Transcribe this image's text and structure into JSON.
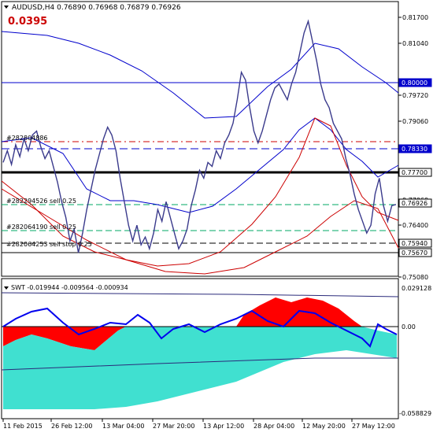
{
  "header": {
    "symbol_line": "AUDUSD,H4  0.76890 0.76968 0.76879 0.76926",
    "value": "0.0395",
    "value_color": "#cc0000"
  },
  "price_axis": {
    "ticks": [
      "0.81700",
      "0.81040",
      "0.79720",
      "0.79060",
      "0.77060",
      "0.76400",
      "0.75080"
    ]
  },
  "price_tags": [
    {
      "label": "0.80000",
      "fill": "#0000cc",
      "text_color": "#ffffff"
    },
    {
      "label": "0.78330",
      "fill": "#0000cc",
      "text_color": "#ffffff"
    },
    {
      "label": "0.77700",
      "fill": "#ffffff",
      "text_color": "#000000"
    },
    {
      "label": "0.76926",
      "fill": "#ffffff",
      "text_color": "#000000"
    },
    {
      "label": "0.75940",
      "fill": "#ffffff",
      "text_color": "#000000"
    },
    {
      "label": "0.75670",
      "fill": "#ffffff",
      "text_color": "#000000"
    }
  ],
  "order_labels": [
    "#282804886",
    "#282294526 sell 0.25",
    "#282064190 sell 0.25",
    "#282064253 sell stop 0.25"
  ],
  "indicator": {
    "title": "SWT -0.019944 -0.009564 -0.000934",
    "ticks": [
      "0.029128",
      "0.00",
      "-0.058829"
    ]
  },
  "time_axis": {
    "labels": [
      "11 Feb 2015",
      "26 Feb 12:00",
      "13 Mar 04:00",
      "27 Mar 20:00",
      "13 Apr 12:00",
      "28 Apr 04:00",
      "12 May 20:00",
      "27 May 12:00"
    ]
  },
  "colors": {
    "price_line": "#3a3a8c",
    "envelope_blue": "#0000cc",
    "envelope_red": "#cc0000",
    "histogram_red": "#ff0000",
    "histogram_cyan": "#40e0d0",
    "swt_line": "#0000ee"
  },
  "chart_data": {
    "type": "line",
    "series": [
      {
        "values": [
          0.78,
          0.783,
          0.7795,
          0.7845,
          0.7815,
          0.786,
          0.783,
          0.787,
          0.788,
          0.784,
          0.781,
          0.783,
          0.779,
          0.775,
          0.77,
          0.766,
          0.76,
          0.763,
          0.757,
          0.762,
          0.768,
          0.773,
          0.778,
          0.782,
          0.786,
          0.789,
          0.787,
          0.783,
          0.776,
          0.77,
          0.764,
          0.76,
          0.764,
          0.759,
          0.761,
          0.758,
          0.762,
          0.768,
          0.765,
          0.77,
          0.766,
          0.762,
          0.758,
          0.76,
          0.763,
          0.769,
          0.773,
          0.778,
          0.776,
          0.78,
          0.779,
          0.783,
          0.781,
          0.785,
          0.787,
          0.79,
          0.796,
          0.803,
          0.801,
          0.794,
          0.788,
          0.785,
          0.788,
          0.792,
          0.796,
          0.799,
          0.8,
          0.798,
          0.796,
          0.8,
          0.803,
          0.808,
          0.813,
          0.816,
          0.811,
          0.806,
          0.8,
          0.796,
          0.794,
          0.79,
          0.788,
          0.786,
          0.781,
          0.777,
          0.772,
          0.768,
          0.765,
          0.762,
          0.764,
          0.772,
          0.776,
          0.769,
          0.765,
          0.769,
          0.7693
        ],
        "x_start": "11 Feb 2015",
        "x_end": "27 May 12:00"
      }
    ]
  }
}
